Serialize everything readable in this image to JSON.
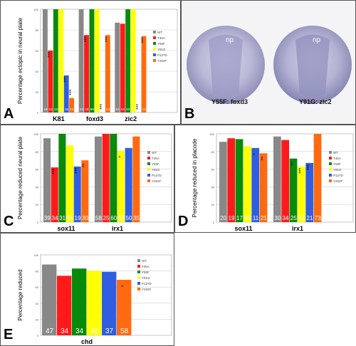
{
  "colors": {
    "WT": "#888888",
    "T45A": "#ff1a1a",
    "Y55F": "#0a8a0a",
    "Y91G": "#ffff00",
    "P127D": "#2f5fe0",
    "Y202F": "#ff6a10",
    "frame": "#555555",
    "photo_bg": "#f4f4f6",
    "embryo": "#b9b8d6"
  },
  "legend_labels": [
    "WT",
    "T45A",
    "Y55F",
    "Y91G",
    "P127D",
    "Y202F"
  ],
  "panels": {
    "A": {
      "letter": "A",
      "ylabel": "Percentage ectopic in neural plate"
    },
    "B": {
      "letter": "B",
      "left_caption": "Y55F: foxd3",
      "right_caption": "Y91G: zic2",
      "np_left": "np",
      "np_right": "np"
    },
    "C": {
      "letter": "C",
      "ylabel": "Percentage reduced neural plate"
    },
    "D": {
      "letter": "D",
      "ylabel": "Percentage reduced in placode"
    },
    "E": {
      "letter": "E",
      "ylabel": "Percentage reduced"
    }
  },
  "chart_data": [
    {
      "panel": "A",
      "type": "bar",
      "categories": [
        "K81",
        "foxd3",
        "zic2"
      ],
      "ylim": [
        0,
        100
      ],
      "yticks": [
        0,
        20,
        40,
        60,
        80,
        100
      ],
      "series": [
        {
          "name": "WT",
          "values": [
            100,
            100,
            87
          ],
          "n": [
            "16",
            "64",
            "54"
          ],
          "sig": [
            "",
            "",
            ""
          ]
        },
        {
          "name": "T45A",
          "values": [
            60,
            75,
            86
          ],
          "n": [
            "42",
            "40",
            "64"
          ],
          "sig": [
            "***",
            "***",
            ""
          ]
        },
        {
          "name": "Y55F",
          "values": [
            100,
            100,
            100
          ],
          "n": [
            "42",
            "59",
            "53"
          ],
          "sig": [
            "",
            "",
            ""
          ]
        },
        {
          "name": "Y91G",
          "values": [
            100,
            100,
            100
          ],
          "n": [
            "24",
            "54",
            "36"
          ],
          "sig": [
            "",
            "",
            ""
          ]
        },
        {
          "name": "P127D",
          "values": [
            36,
            0,
            0
          ],
          "n": [
            "15",
            "16",
            "21"
          ],
          "sig": [
            "***",
            "***",
            "***"
          ]
        },
        {
          "name": "Y202F",
          "values": [
            14,
            75,
            74
          ],
          "n": [
            "12",
            "23",
            "14"
          ],
          "sig": [
            "***",
            "***",
            "***"
          ]
        }
      ]
    },
    {
      "panel": "C",
      "type": "bar",
      "categories": [
        "sox11",
        "irx1"
      ],
      "ylim": [
        0,
        100
      ],
      "yticks": [
        0,
        20,
        40,
        60,
        80,
        100
      ],
      "series": [
        {
          "name": "WT",
          "values": [
            95,
            97
          ],
          "n": [
            "39",
            "58"
          ],
          "sig": [
            "",
            ""
          ]
        },
        {
          "name": "T45A",
          "values": [
            62,
            100
          ],
          "n": [
            "34",
            "25"
          ],
          "sig": [
            "***",
            ""
          ]
        },
        {
          "name": "Y55F",
          "values": [
            100,
            100
          ],
          "n": [
            "31",
            "60"
          ],
          "sig": [
            "",
            ""
          ]
        },
        {
          "name": "Y91G",
          "values": [
            87,
            81
          ],
          "n": [
            "51",
            "53"
          ],
          "sig": [
            "",
            "*"
          ]
        },
        {
          "name": "P127D",
          "values": [
            63,
            84
          ],
          "n": [
            "19",
            "50"
          ],
          "sig": [
            "***",
            ""
          ]
        },
        {
          "name": "Y202F",
          "values": [
            70,
            97
          ],
          "n": [
            "30",
            "35"
          ],
          "sig": [
            "**",
            ""
          ]
        }
      ]
    },
    {
      "panel": "D",
      "type": "bar",
      "categories": [
        "sox11",
        "irx1"
      ],
      "ylim": [
        0,
        100
      ],
      "yticks": [
        0,
        20,
        40,
        60,
        80,
        100
      ],
      "series": [
        {
          "name": "WT",
          "values": [
            91,
            97
          ],
          "n": [
            "20",
            "30"
          ],
          "sig": [
            "",
            ""
          ]
        },
        {
          "name": "T45A",
          "values": [
            95,
            93
          ],
          "n": [
            "19",
            "34"
          ],
          "sig": [
            "",
            ""
          ]
        },
        {
          "name": "Y55F",
          "values": [
            94,
            72
          ],
          "n": [
            "17",
            "25"
          ],
          "sig": [
            "",
            "**"
          ]
        },
        {
          "name": "Y91G",
          "values": [
            86,
            63
          ],
          "n": [
            "28",
            "51"
          ],
          "sig": [
            "",
            "***"
          ]
        },
        {
          "name": "P127D",
          "values": [
            84,
            67
          ],
          "n": [
            "11",
            "21"
          ],
          "sig": [
            "*",
            "***"
          ]
        },
        {
          "name": "Y202F",
          "values": [
            78,
            100
          ],
          "n": [
            "21",
            "73"
          ],
          "sig": [
            "**",
            ""
          ]
        }
      ]
    },
    {
      "panel": "E",
      "type": "bar",
      "categories": [
        "chd"
      ],
      "ylim": [
        0,
        100
      ],
      "yticks": [
        0,
        20,
        40,
        60,
        80,
        100
      ],
      "series": [
        {
          "name": "WT",
          "values": [
            88
          ],
          "n": [
            "47"
          ],
          "sig": [
            ""
          ]
        },
        {
          "name": "T45A",
          "values": [
            74
          ],
          "n": [
            "34"
          ],
          "sig": [
            ""
          ]
        },
        {
          "name": "Y55F",
          "values": [
            83
          ],
          "n": [
            "34"
          ],
          "sig": [
            ""
          ]
        },
        {
          "name": "Y91G",
          "values": [
            80
          ],
          "n": [
            "40"
          ],
          "sig": [
            ""
          ]
        },
        {
          "name": "P127D",
          "values": [
            79
          ],
          "n": [
            "37"
          ],
          "sig": [
            ""
          ]
        },
        {
          "name": "Y202F",
          "values": [
            69
          ],
          "n": [
            "58"
          ],
          "sig": [
            "*"
          ]
        }
      ]
    }
  ]
}
